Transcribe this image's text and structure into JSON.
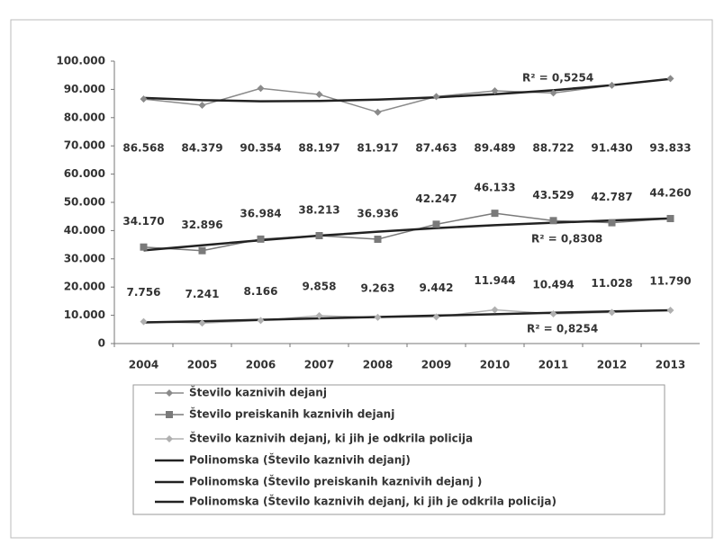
{
  "chart_data": {
    "type": "line",
    "categories": [
      "2004",
      "2005",
      "2006",
      "2007",
      "2008",
      "2009",
      "2010",
      "2011",
      "2012",
      "2013"
    ],
    "series": [
      {
        "name": "Število kaznivih dejanj",
        "color": "#8a8a8a",
        "marker": "diamond",
        "values": [
          86568,
          84379,
          90354,
          88197,
          81917,
          87463,
          89489,
          88722,
          91430,
          93833
        ],
        "value_labels": [
          "86.568",
          "84.379",
          "90.354",
          "88.197",
          "81.917",
          "87.463",
          "89.489",
          "88.722",
          "91.430",
          "93.833"
        ]
      },
      {
        "name": "Število preiskanih kaznivih dejanj",
        "color": "#7a7a7a",
        "marker": "square",
        "values": [
          34170,
          32896,
          36984,
          38213,
          36936,
          42247,
          46133,
          43529,
          42787,
          44260
        ],
        "value_labels": [
          "34.170",
          "32.896",
          "36.984",
          "38.213",
          "36.936",
          "42.247",
          "46.133",
          "43.529",
          "42.787",
          "44.260"
        ]
      },
      {
        "name": "Število kaznivih dejanj, ki jih je odkrila policija",
        "color": "#b0b0b0",
        "marker": "diamond",
        "values": [
          7756,
          7241,
          8166,
          9858,
          9263,
          9442,
          11944,
          10494,
          11028,
          11790
        ],
        "value_labels": [
          "7.756",
          "7.241",
          "8.166",
          "9.858",
          "9.263",
          "9.442",
          "11.944",
          "10.494",
          "11.028",
          "11.790"
        ]
      },
      {
        "name": "Polinomska (Število kaznivih dejanj)",
        "color": "#222222",
        "marker": "none",
        "values": [
          87000,
          86200,
          85800,
          85900,
          86400,
          87200,
          88300,
          89700,
          91500,
          93700
        ]
      },
      {
        "name": "Polinomska (Število preiskanih kaznivih dejanj )",
        "color": "#222222",
        "marker": "none",
        "values": [
          33000,
          34800,
          36600,
          38200,
          39600,
          40900,
          41900,
          42800,
          43600,
          44300
        ]
      },
      {
        "name": "Polinomska (Število kaznivih dejanj, ki jih je odkrila policija)",
        "color": "#222222",
        "marker": "none",
        "values": [
          7500,
          7900,
          8400,
          8900,
          9400,
          9900,
          10400,
          10900,
          11400,
          11800
        ]
      }
    ],
    "annotations": [
      "R² = 0,5254",
      "R² = 0,8308",
      "R² = 0,8254"
    ],
    "ylim": [
      0,
      100000
    ],
    "yticks": [
      0,
      {
        "value": 10000,
        "label": "10.000"
      },
      {
        "value": 20000,
        "label": "20.000"
      },
      {
        "value": 30000,
        "label": "30.000"
      },
      {
        "value": 40000,
        "label": "40.000"
      },
      {
        "value": 50000,
        "label": "50.000"
      },
      {
        "value": 60000,
        "label": "60.000"
      },
      {
        "value": 70000,
        "label": "70.000"
      },
      {
        "value": 80000,
        "label": "80.000"
      },
      {
        "value": 90000,
        "label": "90.000"
      },
      {
        "value": 100000,
        "label": "100.000"
      }
    ],
    "grid": false,
    "legend": "bottom"
  }
}
